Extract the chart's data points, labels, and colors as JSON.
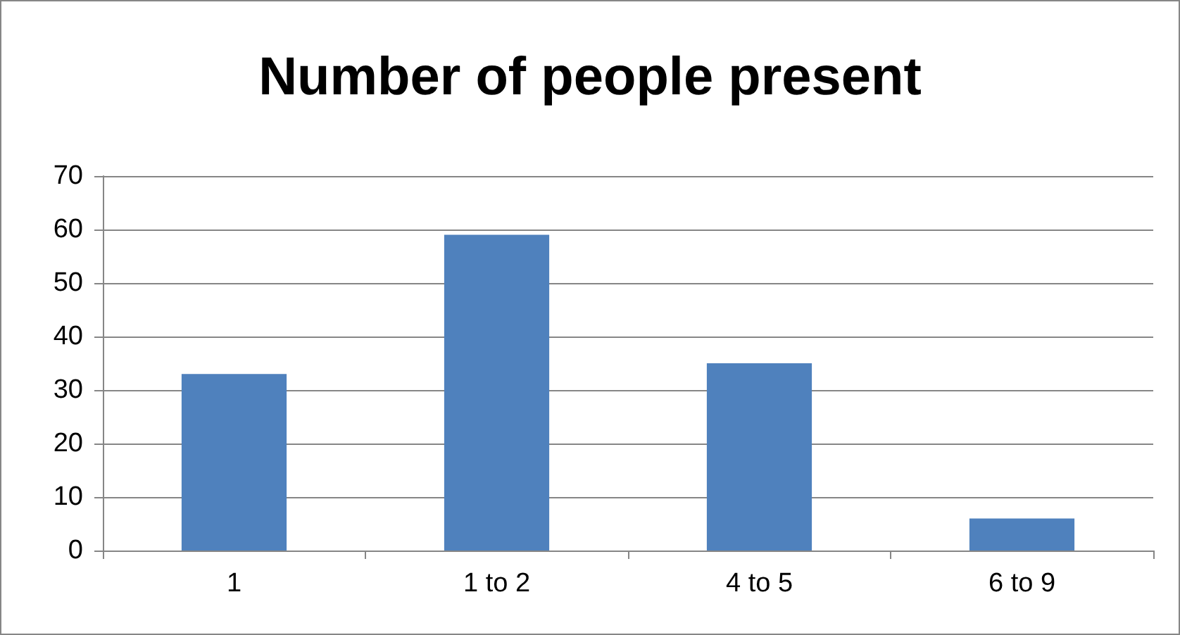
{
  "chart_data": {
    "type": "bar",
    "title": "Number of people present",
    "categories": [
      "1",
      "1 to 2",
      "4 to 5",
      "6 to 9"
    ],
    "values": [
      33,
      59,
      35,
      6
    ],
    "color": "#4f81bd",
    "ylim": [
      0,
      70
    ],
    "yticks": [
      0,
      10,
      20,
      30,
      40,
      50,
      60,
      70
    ],
    "grid": "y"
  }
}
